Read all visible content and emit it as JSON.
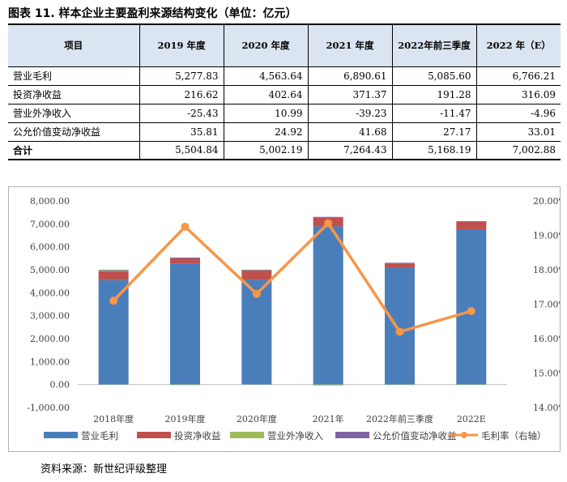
{
  "figure": {
    "title": "图表 11. 样本企业主要盈利来源结构变化（单位：亿元）",
    "source": "资料来源：新世纪评级整理"
  },
  "table": {
    "headers": [
      "项目",
      "2019 年度",
      "2020 年度",
      "2021 年度",
      "2022年前三季度",
      "2022 年（E）"
    ],
    "rows": [
      {
        "label": "营业毛利",
        "values": [
          "5,277.83",
          "4,563.64",
          "6,890.61",
          "5,085.60",
          "6,766.21"
        ]
      },
      {
        "label": "投资净收益",
        "values": [
          "216.62",
          "402.64",
          "371.37",
          "191.28",
          "316.09"
        ]
      },
      {
        "label": "营业外净收入",
        "values": [
          "-25.43",
          "10.99",
          "-39.23",
          "-11.47",
          "-4.96"
        ]
      },
      {
        "label": "公允价值变动净收益",
        "values": [
          "35.81",
          "24.92",
          "41.68",
          "27.17",
          "33.01"
        ]
      },
      {
        "label": "合计",
        "values": [
          "5,504.84",
          "5,002.19",
          "7,264.43",
          "5,168.19",
          "7,002.88"
        ]
      }
    ]
  },
  "chart_data": {
    "type": "bar",
    "stacked": true,
    "categories": [
      "2018年度",
      "2019年度",
      "2020年度",
      "2021年",
      "2022年前三季度",
      "2022E"
    ],
    "series": [
      {
        "name": "营业毛利",
        "color": "#4a7ebb",
        "values": [
          4550,
          5278,
          4564,
          6891,
          5086,
          6766
        ]
      },
      {
        "name": "投资净收益",
        "color": "#c0504d",
        "values": [
          380,
          217,
          403,
          371,
          191,
          316
        ]
      },
      {
        "name": "营业外净收入",
        "color": "#9bbb59",
        "values": [
          40,
          -25,
          11,
          -39,
          -11,
          -5
        ]
      },
      {
        "name": "公允价值变动净收益",
        "color": "#8064a2",
        "values": [
          30,
          36,
          25,
          42,
          27,
          33
        ]
      }
    ],
    "line_series": {
      "name": "毛利率（右轴）",
      "color": "#f79646",
      "values": [
        17.1,
        19.25,
        17.3,
        19.35,
        16.2,
        16.8
      ]
    },
    "y_left": {
      "min": -1000,
      "max": 8000,
      "step": 1000,
      "tick_labels": [
        "-1,000.00",
        "0.00",
        "1,000.00",
        "2,000.00",
        "3,000.00",
        "4,000.00",
        "5,000.00",
        "6,000.00",
        "7,000.00",
        "8,000.00"
      ]
    },
    "y_right": {
      "min": 14,
      "max": 20,
      "step": 1,
      "tick_labels": [
        "14.00%",
        "15.00%",
        "16.00%",
        "17.00%",
        "18.00%",
        "19.00%",
        "20.00%"
      ]
    },
    "legend_position": "bottom"
  }
}
